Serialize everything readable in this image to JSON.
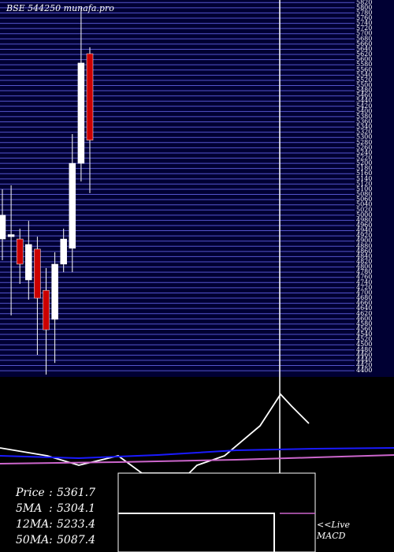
{
  "chart_data": {
    "type": "candlestick",
    "title": "BSE 544250  munafa.pro",
    "up_color": "#ffffff",
    "down_color": "#cc0000",
    "grid": true,
    "ylim": [
      4385,
      5830
    ],
    "yticks": [
      4400,
      4420,
      4440,
      4460,
      4480,
      4500,
      4520,
      4540,
      4560,
      4580,
      4600,
      4620,
      4640,
      4660,
      4680,
      4700,
      4720,
      4740,
      4760,
      4780,
      4800,
      4820,
      4840,
      4860,
      4880,
      4900,
      4920,
      4940,
      4960,
      4980,
      5000,
      5020,
      5040,
      5060,
      5080,
      5100,
      5120,
      5140,
      5160,
      5180,
      5200,
      5220,
      5240,
      5260,
      5280,
      5300,
      5320,
      5340,
      5360,
      5380,
      5400,
      5420,
      5440,
      5460,
      5480,
      5500,
      5520,
      5540,
      5560,
      5580,
      5600,
      5620,
      5640,
      5660,
      5680,
      5700,
      5720,
      5740,
      5760,
      5780,
      5800,
      5820
    ],
    "open": [
      4908,
      4917,
      4908,
      4750,
      4869,
      4710,
      4598,
      4811,
      4872,
      5200,
      5623
    ],
    "high": [
      5100,
      5115,
      4948,
      4978,
      4917,
      4796,
      4857,
      4948,
      5313,
      5800,
      5648
    ],
    "low": [
      4826,
      4613,
      4735,
      4674,
      4461,
      4385,
      4430,
      4780,
      4780,
      5130,
      5085
    ],
    "close": [
      5000,
      4925,
      4811,
      4887,
      4680,
      4558,
      4811,
      4908,
      5200,
      5587,
      5289
    ]
  },
  "info": [
    {
      "label": "Price",
      "value": 5361.7
    },
    {
      "label": "5MA",
      "value": 5304.1
    },
    {
      "label": "12MA",
      "value": 5233.4
    },
    {
      "label": "50MA",
      "value": 5087.4
    }
  ],
  "macd_label": [
    "<<Live",
    "MACD"
  ]
}
